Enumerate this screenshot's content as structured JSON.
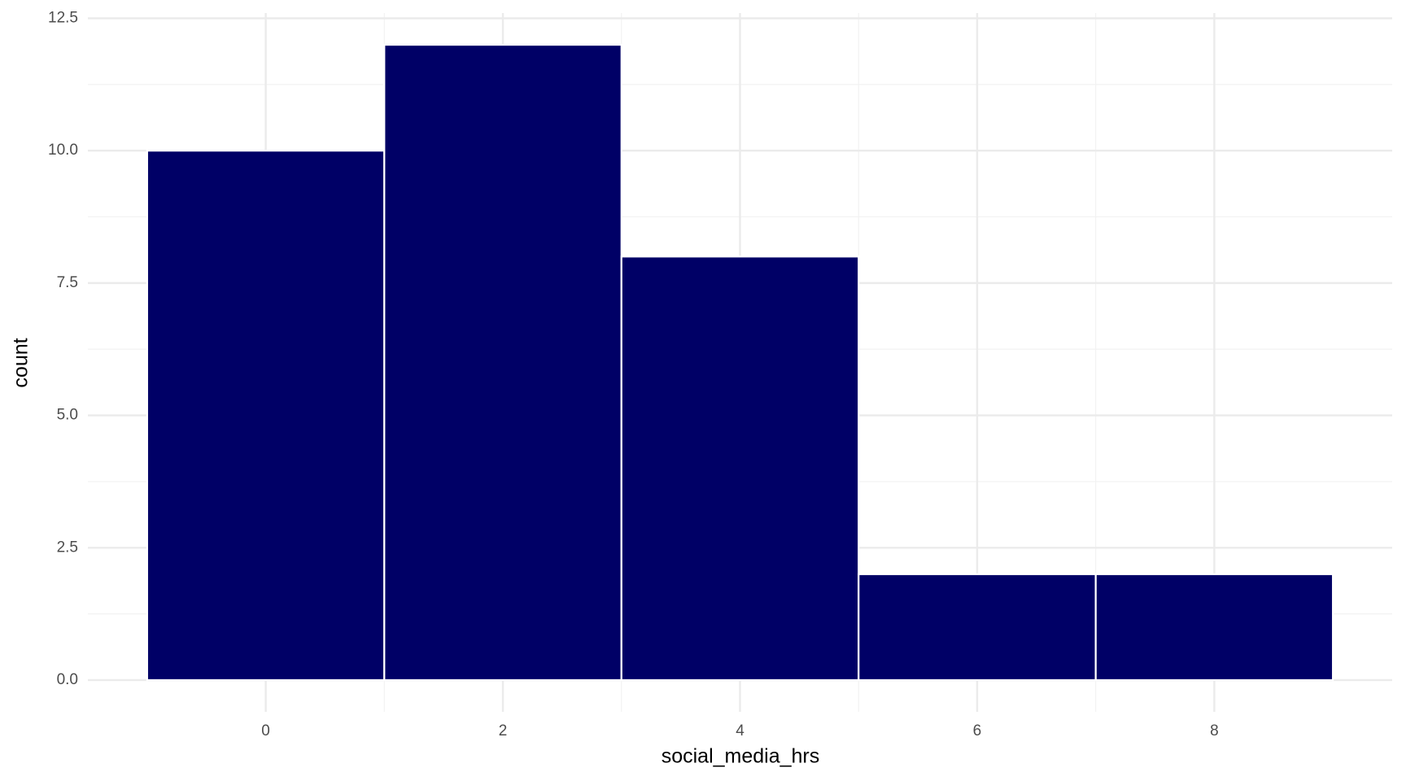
{
  "chart_data": {
    "type": "histogram",
    "x_label": "social_media_hrs",
    "y_label": "count",
    "bins": [
      -1,
      1,
      3,
      5,
      7,
      9
    ],
    "values": [
      10,
      12,
      8,
      2,
      2
    ],
    "color": "#000066",
    "edgecolor": "#ffffff",
    "xlim": [
      -1.5,
      9.5
    ],
    "xticks": [
      0,
      2,
      4,
      6,
      8
    ],
    "ylim": [
      -0.6,
      12.6
    ],
    "yticks": [
      {
        "value": 0,
        "label": "0.0"
      },
      2.5,
      {
        "value": 5,
        "label": "5.0"
      },
      7.5,
      {
        "value": 10,
        "label": "10.0"
      },
      12.5
    ],
    "grid": true
  }
}
